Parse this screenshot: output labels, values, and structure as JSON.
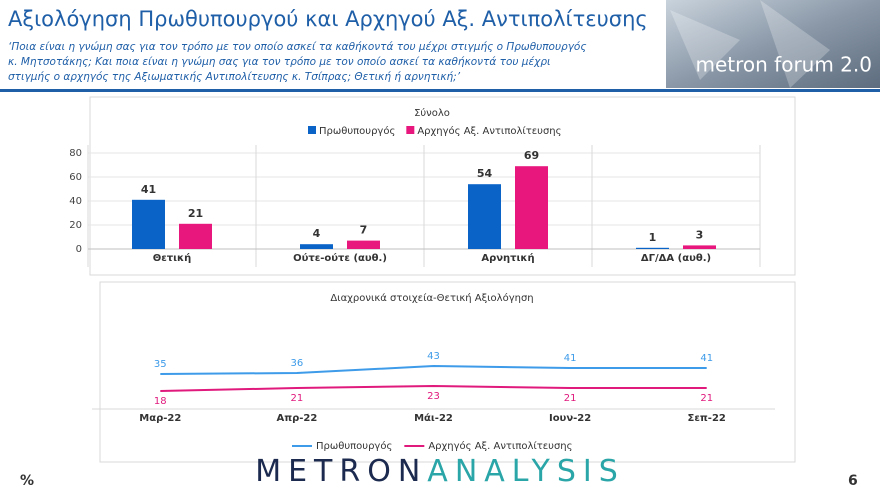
{
  "header": {
    "title": "Αξιολόγηση Πρωθυπουργού και Αρχηγού Αξ. Αντιπολίτευσης",
    "subtitle": [
      "‘Ποια είναι η γνώμη σας για τον τρόπο με τον οποίο ασκεί τα καθήκοντά του μέχρι στιγμής ο Πρωθυπουργός",
      "κ. Μητσοτάκης; Και ποια είναι η γνώμη σας για τον τρόπο με τον οποίο ασκεί τα καθήκοντά του μέχρι",
      "στιγμής ο αρχηγός της Αξιωματικής Αντιπολίτευσης κ. Τσίπρας; Θετική ή αρνητική;’"
    ],
    "logo": "metron forum 2.0"
  },
  "footer": {
    "unit": "%",
    "page": "6",
    "brand": [
      "METRON",
      "ANALYSIS"
    ]
  },
  "chart_data": [
    {
      "type": "bar",
      "title": "Σύνολο",
      "categories": [
        "Θετική",
        "Ούτε-ούτε (αυθ.)",
        "Αρνητική",
        "ΔΓ/ΔΑ (αυθ.)"
      ],
      "series": [
        {
          "name": "Πρωθυπουργός",
          "color": "#0a64c8",
          "values": [
            41,
            4,
            54,
            1
          ]
        },
        {
          "name": "Αρχηγός Αξ. Αντιπολίτευσης",
          "color": "#e8177d",
          "values": [
            21,
            7,
            69,
            3
          ]
        }
      ],
      "ylim": [
        0,
        80
      ],
      "yticks": [
        0,
        20,
        40,
        60,
        80
      ],
      "grid": true
    },
    {
      "type": "line",
      "title": "Διαχρονικά στοιχεία-Θετική Αξιολόγηση",
      "categories": [
        "Μαρ-22",
        "Απρ-22",
        "Μάι-22",
        "Ιουν-22",
        "Σεπ-22"
      ],
      "series": [
        {
          "name": "Πρωθυπουργός",
          "color": "#3d9be9",
          "values": [
            35,
            36,
            43,
            41,
            41
          ]
        },
        {
          "name": "Αρχηγός Αξ. Αντιπολίτευσης",
          "color": "#e0197d",
          "values": [
            18,
            21,
            23,
            21,
            21
          ]
        }
      ],
      "ylim": [
        0,
        100
      ]
    }
  ]
}
